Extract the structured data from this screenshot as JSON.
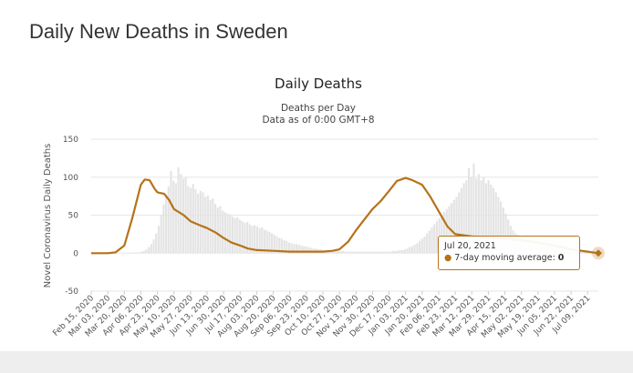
{
  "page": {
    "title": "Daily New Deaths in Sweden"
  },
  "colors": {
    "line": "#b5731a",
    "bars": "#e4e4e4",
    "grid": "#e6e6e6"
  },
  "chart_data": {
    "type": "line",
    "title": "Daily Deaths",
    "subtitle": "Deaths per Day",
    "subtitle2": "Data as of 0:00 GMT+8",
    "ylabel": "Novel Coronavirus Daily Deaths",
    "xlabel": "",
    "ylim": [
      -50,
      150
    ],
    "yticks": [
      -50,
      0,
      50,
      100,
      150
    ],
    "grid": true,
    "x_tick_labels": [
      "Feb 15, 2020",
      "Mar 03, 2020",
      "Mar 20, 2020",
      "Apr 06, 2020",
      "Apr 23, 2020",
      "May 10, 2020",
      "May 27, 2020",
      "Jun 13, 2020",
      "Jun 30, 2020",
      "Jul 17, 2020",
      "Aug 03, 2020",
      "Aug 20, 2020",
      "Sep 06, 2020",
      "Sep 23, 2020",
      "Oct 10, 2020",
      "Oct 27, 2020",
      "Nov 13, 2020",
      "Nov 30, 2020",
      "Dec 17, 2020",
      "Jan 03, 2021",
      "Jan 20, 2021",
      "Feb 06, 2021",
      "Feb 23, 2021",
      "Mar 12, 2021",
      "Mar 29, 2021",
      "Apr 15, 2021",
      "May 02, 2021",
      "May 19, 2021",
      "Jun 05, 2021",
      "Jun 22, 2021",
      "Jul 09, 2021"
    ],
    "series": [
      {
        "name": "7-day moving average",
        "x": [
          "Feb 15, 2020",
          "Mar 03, 2020",
          "Mar 11, 2020",
          "Mar 20, 2020",
          "Mar 28, 2020",
          "Apr 06, 2020",
          "Apr 10, 2020",
          "Apr 15, 2020",
          "Apr 20, 2020",
          "Apr 23, 2020",
          "Apr 30, 2020",
          "May 05, 2020",
          "May 10, 2020",
          "May 20, 2020",
          "May 27, 2020",
          "Jun 05, 2020",
          "Jun 13, 2020",
          "Jun 22, 2020",
          "Jun 30, 2020",
          "Jul 08, 2020",
          "Jul 17, 2020",
          "Jul 25, 2020",
          "Aug 03, 2020",
          "Aug 20, 2020",
          "Sep 06, 2020",
          "Sep 23, 2020",
          "Oct 10, 2020",
          "Oct 20, 2020",
          "Oct 27, 2020",
          "Nov 05, 2020",
          "Nov 13, 2020",
          "Nov 22, 2020",
          "Nov 30, 2020",
          "Dec 08, 2020",
          "Dec 17, 2020",
          "Dec 25, 2020",
          "Jan 03, 2021",
          "Jan 10, 2021",
          "Jan 20, 2021",
          "Jan 28, 2021",
          "Feb 06, 2021",
          "Feb 15, 2021",
          "Feb 23, 2021",
          "Mar 12, 2021",
          "Mar 29, 2021",
          "Apr 15, 2021",
          "May 02, 2021",
          "May 19, 2021",
          "Jun 05, 2021",
          "Jun 22, 2021",
          "Jul 09, 2021",
          "Jul 20, 2021"
        ],
        "values": [
          0,
          0,
          1,
          10,
          45,
          90,
          97,
          96,
          85,
          80,
          78,
          70,
          58,
          50,
          42,
          37,
          33,
          27,
          20,
          14,
          10,
          6,
          4,
          3,
          2,
          2,
          2,
          3,
          5,
          15,
          30,
          45,
          58,
          68,
          82,
          95,
          99,
          96,
          90,
          75,
          55,
          35,
          25,
          22,
          21,
          19,
          17,
          14,
          10,
          5,
          2,
          0
        ]
      }
    ],
    "bars": {
      "name": "Daily deaths",
      "values": [
        0,
        0,
        0,
        0,
        0,
        0,
        0,
        0,
        0,
        0,
        0,
        0,
        0,
        0,
        0,
        0,
        0,
        1,
        1,
        1,
        2,
        3,
        5,
        8,
        12,
        18,
        26,
        36,
        50,
        64,
        77,
        88,
        108,
        95,
        92,
        113,
        104,
        98,
        100,
        88,
        86,
        91,
        84,
        78,
        82,
        80,
        74,
        76,
        70,
        72,
        65,
        60,
        62,
        56,
        54,
        52,
        51,
        48,
        46,
        47,
        44,
        42,
        40,
        41,
        38,
        36,
        37,
        35,
        33,
        34,
        31,
        30,
        28,
        26,
        24,
        22,
        20,
        19,
        17,
        16,
        14,
        13,
        12,
        12,
        11,
        10,
        9,
        9,
        8,
        7,
        6,
        6,
        5,
        5,
        4,
        4,
        4,
        3,
        3,
        3,
        3,
        3,
        3,
        2,
        2,
        2,
        2,
        2,
        2,
        2,
        2,
        2,
        2,
        2,
        2,
        2,
        2,
        2,
        2,
        2,
        2,
        2,
        3,
        3,
        3,
        4,
        4,
        5,
        6,
        8,
        9,
        11,
        13,
        16,
        19,
        22,
        26,
        30,
        34,
        38,
        42,
        46,
        50,
        54,
        58,
        62,
        66,
        70,
        74,
        80,
        86,
        92,
        96,
        112,
        100,
        118,
        98,
        104,
        96,
        100,
        92,
        96,
        90,
        86,
        80,
        74,
        68,
        60,
        52,
        44,
        36,
        30,
        26,
        24,
        23,
        22,
        22,
        21,
        21,
        20,
        20,
        20,
        19,
        19,
        18,
        18,
        17,
        17,
        16,
        15,
        14,
        12,
        11,
        9,
        7,
        6,
        5,
        4,
        3,
        2,
        2,
        1,
        1,
        1,
        0,
        0
      ]
    },
    "tooltip": {
      "date": "Jul 20, 2021",
      "label": "7-day moving average",
      "value": "0"
    }
  }
}
